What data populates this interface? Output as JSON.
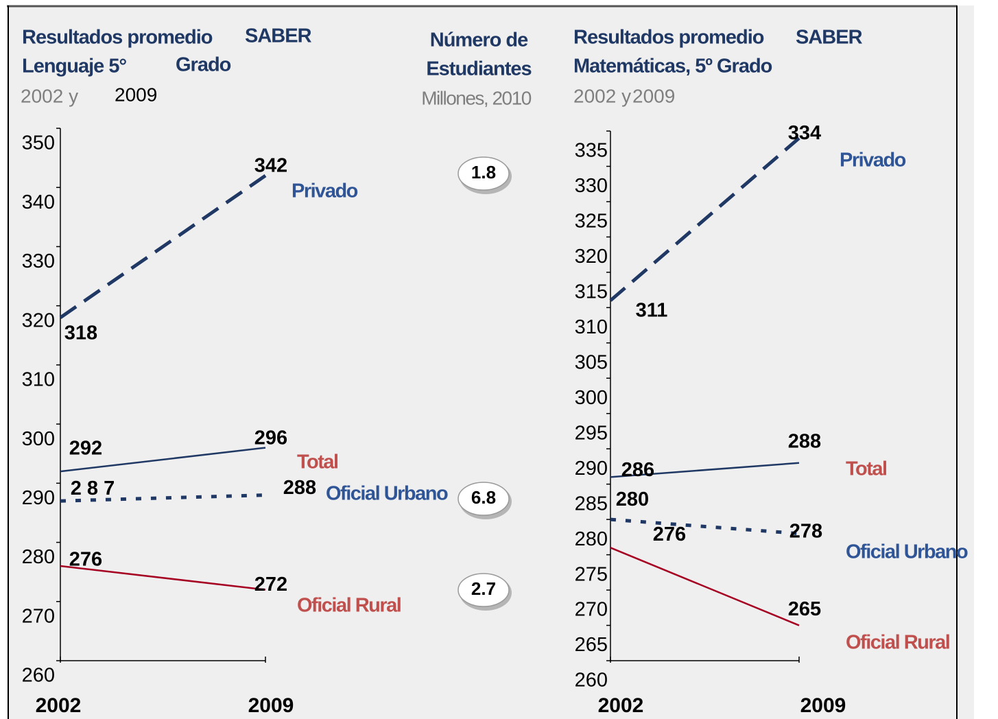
{
  "chart_data": [
    {
      "type": "line",
      "title_lines": [
        "Resultados promedio",
        "SABER",
        "Lenguaje 5°",
        "Grado"
      ],
      "subtitle_parts": [
        "2002 y",
        "2009"
      ],
      "categories": [
        "2002",
        "2009"
      ],
      "ylim": [
        260,
        350
      ],
      "yticks": [
        260,
        270,
        280,
        290,
        300,
        310,
        320,
        330,
        340,
        350
      ],
      "series": [
        {
          "name": "Privado",
          "color": "#1f3864",
          "label_color": "#2f5597",
          "style": "dashed",
          "values": [
            318,
            342
          ]
        },
        {
          "name": "Total",
          "color": "#1f3864",
          "label_color": "#c0504d",
          "style": "solid",
          "values": [
            292,
            296
          ]
        },
        {
          "name": "Oficial Urbano",
          "color": "#1f3864",
          "label_color": "#2f5597",
          "style": "dotted",
          "values": [
            287,
            288
          ],
          "value_labels": [
            "2 8 7",
            "288"
          ]
        },
        {
          "name": "Oficial Rural",
          "color": "#a50021",
          "label_color": "#c0504d",
          "style": "solid",
          "values": [
            276,
            272
          ]
        }
      ]
    },
    {
      "type": "line",
      "title_lines": [
        "Resultados promedio",
        "SABER",
        "Matemáticas, 5º Grado"
      ],
      "subtitle_parts": [
        "2002 y",
        "2009"
      ],
      "categories": [
        "2002",
        "2009"
      ],
      "ylim": [
        260,
        335
      ],
      "yticks": [
        260,
        265,
        270,
        275,
        280,
        285,
        290,
        295,
        300,
        305,
        310,
        315,
        320,
        325,
        330,
        335
      ],
      "series": [
        {
          "name": "Privado",
          "color": "#1f3864",
          "label_color": "#2f5597",
          "style": "dashed",
          "values": [
            311,
            334
          ]
        },
        {
          "name": "Total",
          "color": "#1f3864",
          "label_color": "#c0504d",
          "style": "solid",
          "values": [
            286,
            288
          ]
        },
        {
          "name": "Oficial Urbano",
          "color": "#1f3864",
          "label_color": "#2f5597",
          "style": "dotted",
          "values": [
            280,
            278
          ]
        },
        {
          "name": "Oficial Rural",
          "color": "#a50021",
          "label_color": "#c0504d",
          "style": "solid",
          "values": [
            276,
            265
          ]
        }
      ]
    }
  ],
  "students": {
    "title_lines": [
      "Número de",
      "Estudiantes"
    ],
    "subtitle": "Millones, 2010",
    "values": [
      1.8,
      6.8,
      2.7
    ]
  }
}
